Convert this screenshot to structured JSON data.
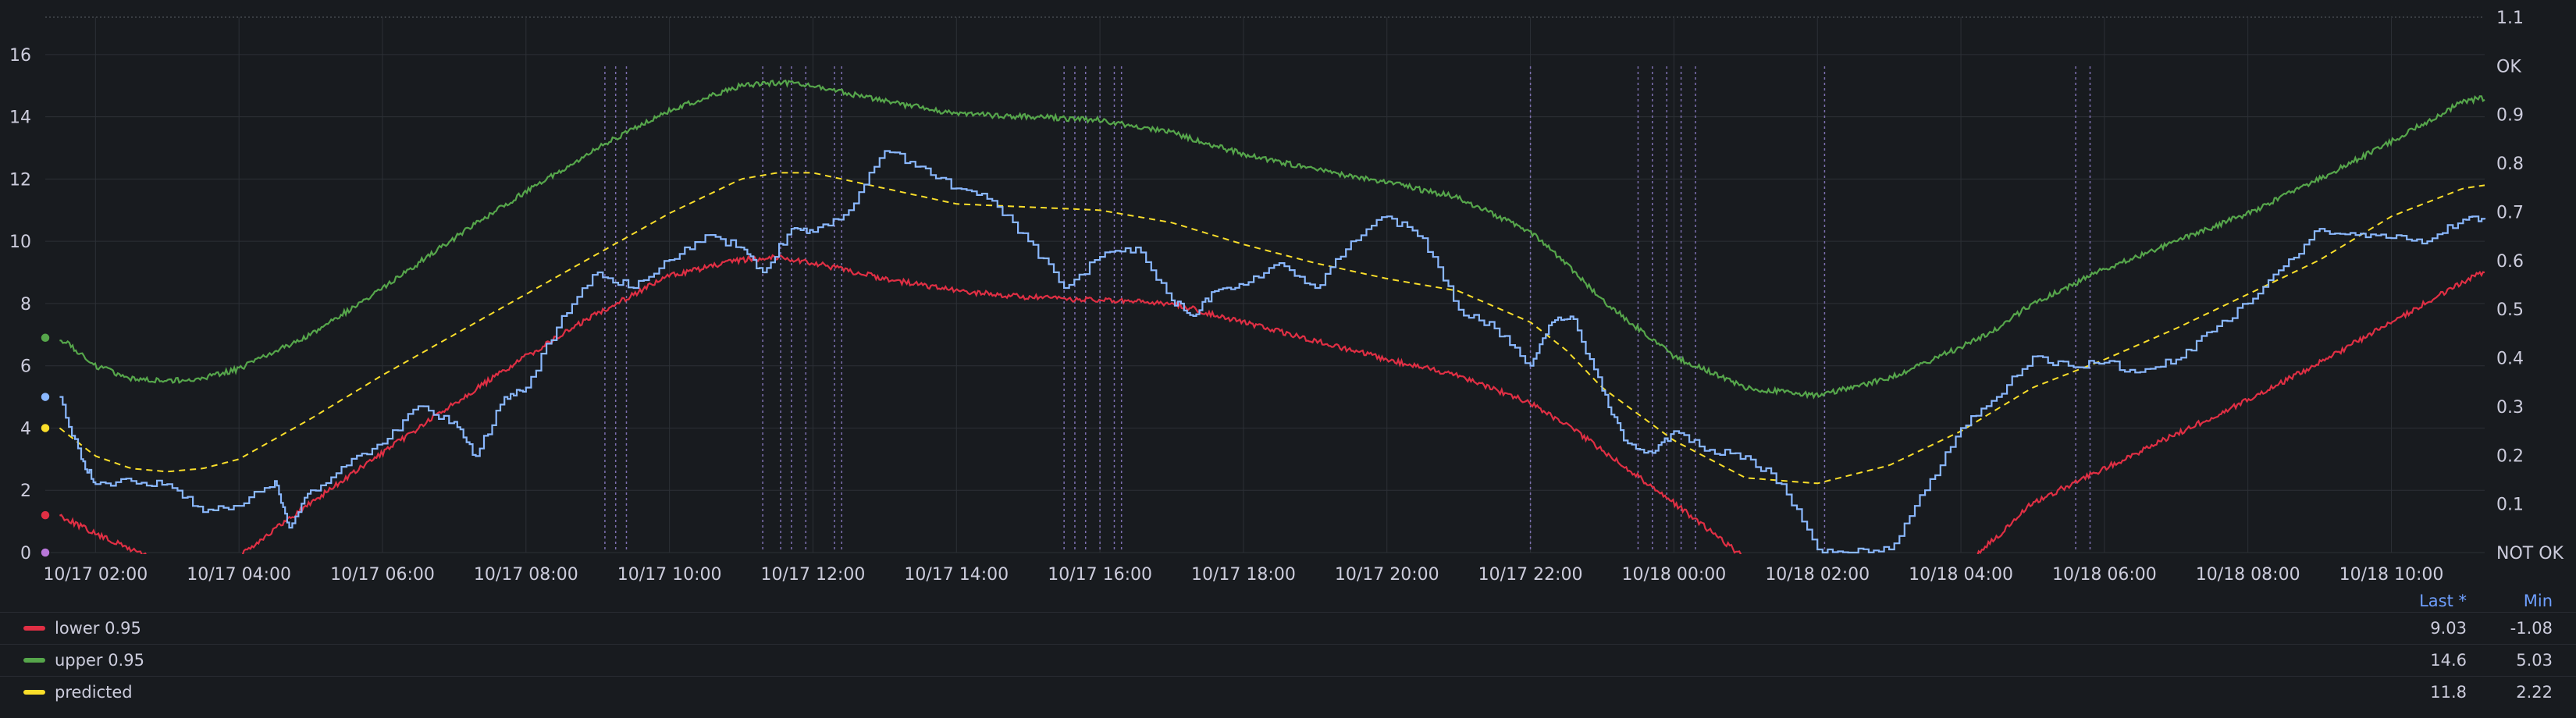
{
  "chart_data": {
    "type": "line",
    "x_ticks": [
      "10/17 02:00",
      "10/17 04:00",
      "10/17 06:00",
      "10/17 08:00",
      "10/17 10:00",
      "10/17 12:00",
      "10/17 14:00",
      "10/17 16:00",
      "10/17 18:00",
      "10/17 20:00",
      "10/17 22:00",
      "10/18 00:00",
      "10/18 02:00",
      "10/18 04:00",
      "10/18 06:00",
      "10/18 08:00",
      "10/18 10:00"
    ],
    "x_range_hours": [
      1.3,
      35.3
    ],
    "y_left_ticks": [
      "0",
      "2",
      "4",
      "6",
      "8",
      "10",
      "12",
      "14",
      "16"
    ],
    "y_left_range": [
      0,
      17.2
    ],
    "y_right_ticks": [
      "NOT OK",
      "0.1",
      "0.2",
      "0.3",
      "0.4",
      "0.5",
      "0.6",
      "0.7",
      "0.8",
      "0.9",
      "OK",
      "1.1"
    ],
    "y_right_range": [
      0,
      1.1
    ],
    "grid": true,
    "legend_placement": "bottom",
    "series": [
      {
        "name": "lower 0.95",
        "color": "#e02f44",
        "style": "solid",
        "x": [
          1.5,
          2,
          2.5,
          3,
          3.5,
          4,
          5,
          6,
          7,
          8,
          9,
          10,
          11,
          11.5,
          12,
          13,
          14,
          15,
          16,
          17,
          18,
          19,
          20,
          21,
          22,
          22.5,
          23,
          24,
          25,
          26,
          27,
          28,
          28.5,
          29,
          30,
          31,
          32,
          33,
          34,
          35,
          35.3
        ],
        "y": [
          1.2,
          0.6,
          0.1,
          -0.3,
          -0.5,
          -0.1,
          1.6,
          3.2,
          4.8,
          6.3,
          7.7,
          8.9,
          9.4,
          9.5,
          9.3,
          8.8,
          8.4,
          8.2,
          8.1,
          8.0,
          7.4,
          6.8,
          6.2,
          5.7,
          4.8,
          4.1,
          3.3,
          1.6,
          -0.2,
          -1.08,
          -1.08,
          -0.5,
          0.5,
          1.6,
          2.7,
          3.8,
          4.9,
          6.1,
          7.4,
          8.7,
          9.03
        ]
      },
      {
        "name": "upper 0.95",
        "color": "#56a64b",
        "style": "solid",
        "x": [
          1.5,
          2,
          2.5,
          3,
          3.5,
          4,
          5,
          6,
          7,
          8,
          9,
          10,
          11,
          11.5,
          12,
          13,
          14,
          15,
          16,
          17,
          18,
          19,
          20,
          21,
          22,
          22.5,
          23,
          24,
          25,
          26,
          27,
          28,
          28.5,
          29,
          30,
          31,
          32,
          33,
          34,
          35,
          35.3
        ],
        "y": [
          6.9,
          6.0,
          5.6,
          5.5,
          5.6,
          5.9,
          7.0,
          8.5,
          10.1,
          11.6,
          13.0,
          14.2,
          15.0,
          15.1,
          15.0,
          14.5,
          14.1,
          14.0,
          13.9,
          13.5,
          12.8,
          12.3,
          11.9,
          11.4,
          10.3,
          9.3,
          8.1,
          6.3,
          5.3,
          5.03,
          5.6,
          6.6,
          7.2,
          8.0,
          9.1,
          10.0,
          10.9,
          12.0,
          13.2,
          14.5,
          14.6
        ]
      },
      {
        "name": "predicted",
        "color": "#fade2a",
        "style": "dashed",
        "x": [
          1.5,
          2,
          2.5,
          3,
          3.5,
          4,
          5,
          6,
          7,
          8,
          9,
          10,
          11,
          11.5,
          12,
          13,
          14,
          15,
          16,
          17,
          18,
          19,
          20,
          21,
          22,
          22.5,
          23,
          24,
          25,
          26,
          27,
          28,
          28.5,
          29,
          30,
          31,
          32,
          33,
          34,
          35,
          35.3
        ],
        "y": [
          4.0,
          3.1,
          2.7,
          2.6,
          2.7,
          3.0,
          4.3,
          5.7,
          7.0,
          8.3,
          9.6,
          10.9,
          12.0,
          12.2,
          12.2,
          11.7,
          11.2,
          11.1,
          11.0,
          10.6,
          9.9,
          9.3,
          8.8,
          8.4,
          7.4,
          6.5,
          5.3,
          3.6,
          2.4,
          2.22,
          2.8,
          3.9,
          4.6,
          5.3,
          6.2,
          7.2,
          8.3,
          9.4,
          10.8,
          11.7,
          11.8
        ]
      },
      {
        "name": "",
        "color": "#8ab8ff",
        "style": "solid",
        "x": [
          1.5,
          1.8,
          2,
          2.5,
          3,
          3.5,
          4,
          4.5,
          4.7,
          5,
          5.5,
          6,
          6.5,
          7,
          7.3,
          7.7,
          8,
          8.5,
          9,
          9.5,
          10,
          10.5,
          11,
          11.3,
          11.7,
          12,
          12.5,
          13,
          13.5,
          14,
          14.5,
          15,
          15.5,
          16,
          16.5,
          17,
          17.3,
          17.6,
          18,
          18.5,
          19,
          19.5,
          20,
          20.5,
          21,
          21.5,
          22,
          22.3,
          22.6,
          23,
          23.3,
          23.7,
          24,
          24.5,
          25,
          25.5,
          26,
          26.5,
          27,
          27.5,
          28,
          28.5,
          29,
          29.5,
          30,
          30.5,
          31,
          31.5,
          32,
          32.5,
          33,
          33.5,
          34,
          34.5,
          35,
          35.3
        ],
        "y": [
          5.0,
          3.0,
          2.2,
          2.3,
          2.2,
          1.3,
          1.5,
          2.3,
          0.8,
          2.0,
          2.8,
          3.5,
          4.7,
          4.2,
          3.1,
          5.0,
          5.3,
          7.6,
          9.0,
          8.5,
          9.4,
          10.2,
          9.8,
          9.0,
          10.4,
          10.3,
          11.0,
          12.9,
          12.4,
          11.7,
          11.3,
          10.0,
          8.5,
          9.5,
          9.8,
          8.1,
          7.6,
          8.4,
          8.6,
          9.3,
          8.5,
          10.0,
          10.8,
          10.1,
          7.8,
          7.2,
          6.0,
          7.4,
          7.5,
          5.2,
          3.6,
          3.2,
          3.9,
          3.3,
          3.1,
          2.2,
          0.1,
          0.0,
          0.1,
          2.0,
          4.0,
          5.0,
          6.3,
          6.0,
          6.1,
          5.8,
          6.2,
          7.1,
          8.0,
          9.2,
          10.4,
          10.2,
          10.1,
          10.0,
          10.7,
          10.7
        ]
      }
    ]
  },
  "legend": {
    "headers": {
      "last": "Last *",
      "min": "Min"
    },
    "rows": [
      {
        "name": "lower 0.95",
        "color": "#e02f44",
        "last": "9.03",
        "min": "-1.08"
      },
      {
        "name": "upper 0.95",
        "color": "#56a64b",
        "last": "14.6",
        "min": "5.03"
      },
      {
        "name": "predicted",
        "color": "#fade2a",
        "last": "11.8",
        "min": "2.22"
      }
    ]
  },
  "annotation_hours": [
    9.1,
    9.25,
    9.4,
    11.3,
    11.55,
    11.7,
    11.9,
    12.3,
    12.4,
    15.5,
    15.65,
    15.8,
    16.0,
    16.2,
    16.3,
    22.0,
    23.5,
    23.7,
    23.9,
    24.1,
    24.3,
    26.1,
    29.6,
    29.8
  ],
  "state_points": [
    {
      "y": 6.9,
      "color": "#56a64b"
    },
    {
      "y": 5.0,
      "color": "#8ab8ff"
    },
    {
      "y": 4.0,
      "color": "#fade2a"
    },
    {
      "y": 1.2,
      "color": "#e02f44"
    },
    {
      "y": 0.0,
      "color": "#b877d9"
    }
  ]
}
